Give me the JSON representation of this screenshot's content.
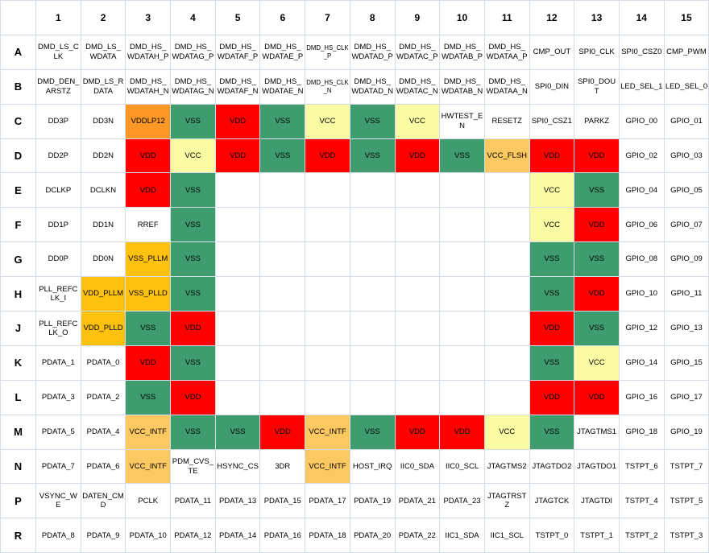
{
  "colors": {
    "red": "#fe0000",
    "green": "#3e9c6f",
    "yellow": "#fbfba3",
    "orange": "#fd9827",
    "amber": "#fec10d",
    "lightamber": "#fbc862",
    "grid_line": "#d5dbe7",
    "text": "#000000"
  },
  "grid": {
    "corner_label": "",
    "col_headers": [
      "1",
      "2",
      "3",
      "4",
      "5",
      "6",
      "7",
      "8",
      "9",
      "10",
      "11",
      "12",
      "13",
      "14",
      "15"
    ],
    "rows": [
      {
        "label": "A",
        "cells": [
          {
            "t": "DMD_LS_CLK"
          },
          {
            "t": "DMD_LS_WDATA"
          },
          {
            "t": "DMD_HS_WDATAH_P"
          },
          {
            "t": "DMD_HS_WDATAG_P"
          },
          {
            "t": "DMD_HS_WDATAF_P"
          },
          {
            "t": "DMD_HS_WDATAE_P"
          },
          {
            "t": "DMD_HS_CLK_P",
            "small": true
          },
          {
            "t": "DMD_HS_WDATAD_P"
          },
          {
            "t": "DMD_HS_WDATAC_P"
          },
          {
            "t": "DMD_HS_WDATAB_P"
          },
          {
            "t": "DMD_HS_WDATAA_P"
          },
          {
            "t": "CMP_OUT"
          },
          {
            "t": "SPI0_CLK"
          },
          {
            "t": "SPI0_CSZ0"
          },
          {
            "t": "CMP_PWM"
          }
        ]
      },
      {
        "label": "B",
        "cells": [
          {
            "t": "DMD_DEN_ARSTZ"
          },
          {
            "t": "DMD_LS_RDATA"
          },
          {
            "t": "DMD_HS_WDATAH_N"
          },
          {
            "t": "DMD_HS_WDATAG_N"
          },
          {
            "t": "DMD_HS_WDATAF_N"
          },
          {
            "t": "DMD_HS_WDATAE_N"
          },
          {
            "t": "DMD_HS_CLK_N",
            "small": true
          },
          {
            "t": "DMD_HS_WDATAD_N"
          },
          {
            "t": "DMD_HS_WDATAC_N"
          },
          {
            "t": "DMD_HS_WDATAB_N"
          },
          {
            "t": "DMD_HS_WDATAA_N"
          },
          {
            "t": "SPI0_DIN"
          },
          {
            "t": "SPI0_DOUT"
          },
          {
            "t": "LED_SEL_1"
          },
          {
            "t": "LED_SEL_0"
          }
        ]
      },
      {
        "label": "C",
        "cells": [
          {
            "t": "DD3P"
          },
          {
            "t": "DD3N"
          },
          {
            "t": "VDDLP12",
            "c": "orange"
          },
          {
            "t": "VSS",
            "c": "green"
          },
          {
            "t": "VDD",
            "c": "red"
          },
          {
            "t": "VSS",
            "c": "green"
          },
          {
            "t": "VCC",
            "c": "yellow"
          },
          {
            "t": "VSS",
            "c": "green"
          },
          {
            "t": "VCC",
            "c": "yellow"
          },
          {
            "t": "HWTEST_EN"
          },
          {
            "t": "RESETZ"
          },
          {
            "t": "SPI0_CSZ1"
          },
          {
            "t": "PARKZ"
          },
          {
            "t": "GPIO_00"
          },
          {
            "t": "GPIO_01"
          }
        ]
      },
      {
        "label": "D",
        "cells": [
          {
            "t": "DD2P"
          },
          {
            "t": "DD2N"
          },
          {
            "t": "VDD",
            "c": "red"
          },
          {
            "t": "VCC",
            "c": "yellow"
          },
          {
            "t": "VDD",
            "c": "red"
          },
          {
            "t": "VSS",
            "c": "green"
          },
          {
            "t": "VDD",
            "c": "red"
          },
          {
            "t": "VSS",
            "c": "green"
          },
          {
            "t": "VDD",
            "c": "red"
          },
          {
            "t": "VSS",
            "c": "green"
          },
          {
            "t": "VCC_FLSH",
            "c": "lightamber"
          },
          {
            "t": "VDD",
            "c": "red"
          },
          {
            "t": "VDD",
            "c": "red"
          },
          {
            "t": "GPIO_02"
          },
          {
            "t": "GPIO_03"
          }
        ]
      },
      {
        "label": "E",
        "cells": [
          {
            "t": "DCLKP"
          },
          {
            "t": "DCLKN"
          },
          {
            "t": "VDD",
            "c": "red"
          },
          {
            "t": "VSS",
            "c": "green"
          },
          {
            "t": ""
          },
          {
            "t": ""
          },
          {
            "t": ""
          },
          {
            "t": ""
          },
          {
            "t": ""
          },
          {
            "t": ""
          },
          {
            "t": ""
          },
          {
            "t": "VCC",
            "c": "yellow"
          },
          {
            "t": "VSS",
            "c": "green"
          },
          {
            "t": "GPIO_04"
          },
          {
            "t": "GPIO_05"
          }
        ]
      },
      {
        "label": "F",
        "cells": [
          {
            "t": "DD1P"
          },
          {
            "t": "DD1N"
          },
          {
            "t": "RREF"
          },
          {
            "t": "VSS",
            "c": "green"
          },
          {
            "t": ""
          },
          {
            "t": ""
          },
          {
            "t": ""
          },
          {
            "t": ""
          },
          {
            "t": ""
          },
          {
            "t": ""
          },
          {
            "t": ""
          },
          {
            "t": "VCC",
            "c": "yellow"
          },
          {
            "t": "VDD",
            "c": "red"
          },
          {
            "t": "GPIO_06"
          },
          {
            "t": "GPIO_07"
          }
        ]
      },
      {
        "label": "G",
        "cells": [
          {
            "t": "DD0P"
          },
          {
            "t": "DD0N"
          },
          {
            "t": "VSS_PLLM",
            "c": "amber"
          },
          {
            "t": "VSS",
            "c": "green"
          },
          {
            "t": ""
          },
          {
            "t": ""
          },
          {
            "t": ""
          },
          {
            "t": ""
          },
          {
            "t": ""
          },
          {
            "t": ""
          },
          {
            "t": ""
          },
          {
            "t": "VSS",
            "c": "green"
          },
          {
            "t": "VSS",
            "c": "green"
          },
          {
            "t": "GPIO_08"
          },
          {
            "t": "GPIO_09"
          }
        ]
      },
      {
        "label": "H",
        "cells": [
          {
            "t": "PLL_REFCLK_I"
          },
          {
            "t": "VDD_PLLM",
            "c": "amber"
          },
          {
            "t": "VSS_PLLD",
            "c": "amber"
          },
          {
            "t": "VSS",
            "c": "green"
          },
          {
            "t": ""
          },
          {
            "t": ""
          },
          {
            "t": ""
          },
          {
            "t": ""
          },
          {
            "t": ""
          },
          {
            "t": ""
          },
          {
            "t": ""
          },
          {
            "t": "VSS",
            "c": "green"
          },
          {
            "t": "VDD",
            "c": "red"
          },
          {
            "t": "GPIO_10"
          },
          {
            "t": "GPIO_11"
          }
        ]
      },
      {
        "label": "J",
        "cells": [
          {
            "t": "PLL_REFCLK_O"
          },
          {
            "t": "VDD_PLLD",
            "c": "amber"
          },
          {
            "t": "VSS",
            "c": "green"
          },
          {
            "t": "VDD",
            "c": "red"
          },
          {
            "t": ""
          },
          {
            "t": ""
          },
          {
            "t": ""
          },
          {
            "t": ""
          },
          {
            "t": ""
          },
          {
            "t": ""
          },
          {
            "t": ""
          },
          {
            "t": "VDD",
            "c": "red"
          },
          {
            "t": "VSS",
            "c": "green"
          },
          {
            "t": "GPIO_12"
          },
          {
            "t": "GPIO_13"
          }
        ]
      },
      {
        "label": "K",
        "cells": [
          {
            "t": "PDATA_1"
          },
          {
            "t": "PDATA_0"
          },
          {
            "t": "VDD",
            "c": "red"
          },
          {
            "t": "VSS",
            "c": "green"
          },
          {
            "t": ""
          },
          {
            "t": ""
          },
          {
            "t": ""
          },
          {
            "t": ""
          },
          {
            "t": ""
          },
          {
            "t": ""
          },
          {
            "t": ""
          },
          {
            "t": "VSS",
            "c": "green"
          },
          {
            "t": "VCC",
            "c": "yellow"
          },
          {
            "t": "GPIO_14"
          },
          {
            "t": "GPIO_15"
          }
        ]
      },
      {
        "label": "L",
        "cells": [
          {
            "t": "PDATA_3"
          },
          {
            "t": "PDATA_2"
          },
          {
            "t": "VSS",
            "c": "green"
          },
          {
            "t": "VDD",
            "c": "red"
          },
          {
            "t": ""
          },
          {
            "t": ""
          },
          {
            "t": ""
          },
          {
            "t": ""
          },
          {
            "t": ""
          },
          {
            "t": ""
          },
          {
            "t": ""
          },
          {
            "t": "VDD",
            "c": "red"
          },
          {
            "t": "VDD",
            "c": "red"
          },
          {
            "t": "GPIO_16"
          },
          {
            "t": "GPIO_17"
          }
        ]
      },
      {
        "label": "M",
        "cells": [
          {
            "t": "PDATA_5"
          },
          {
            "t": "PDATA_4"
          },
          {
            "t": "VCC_INTF",
            "c": "lightamber"
          },
          {
            "t": "VSS",
            "c": "green"
          },
          {
            "t": "VSS",
            "c": "green"
          },
          {
            "t": "VDD",
            "c": "red"
          },
          {
            "t": "VCC_INTF",
            "c": "lightamber"
          },
          {
            "t": "VSS",
            "c": "green"
          },
          {
            "t": "VDD",
            "c": "red"
          },
          {
            "t": "VDD",
            "c": "red"
          },
          {
            "t": "VCC",
            "c": "yellow"
          },
          {
            "t": "VSS",
            "c": "green"
          },
          {
            "t": "JTAGTMS1"
          },
          {
            "t": "GPIO_18"
          },
          {
            "t": "GPIO_19"
          }
        ]
      },
      {
        "label": "N",
        "cells": [
          {
            "t": "PDATA_7"
          },
          {
            "t": "PDATA_6"
          },
          {
            "t": "VCC_INTF",
            "c": "lightamber"
          },
          {
            "t": "PDM_CVS_TE"
          },
          {
            "t": "HSYNC_CS"
          },
          {
            "t": "3DR"
          },
          {
            "t": "VCC_INTF",
            "c": "lightamber"
          },
          {
            "t": "HOST_IRQ"
          },
          {
            "t": "IIC0_SDA"
          },
          {
            "t": "IIC0_SCL"
          },
          {
            "t": "JTAGTMS2"
          },
          {
            "t": "JTAGTDO2"
          },
          {
            "t": "JTAGTDO1"
          },
          {
            "t": "TSTPT_6"
          },
          {
            "t": "TSTPT_7"
          }
        ]
      },
      {
        "label": "P",
        "cells": [
          {
            "t": "VSYNC_WE"
          },
          {
            "t": "DATEN_CMD"
          },
          {
            "t": "PCLK"
          },
          {
            "t": "PDATA_11"
          },
          {
            "t": "PDATA_13"
          },
          {
            "t": "PDATA_15"
          },
          {
            "t": "PDATA_17"
          },
          {
            "t": "PDATA_19"
          },
          {
            "t": "PDATA_21"
          },
          {
            "t": "PDATA_23"
          },
          {
            "t": "JTAGTRSTZ"
          },
          {
            "t": "JTAGTCK"
          },
          {
            "t": "JTAGTDI"
          },
          {
            "t": "TSTPT_4"
          },
          {
            "t": "TSTPT_5"
          }
        ]
      },
      {
        "label": "R",
        "cells": [
          {
            "t": "PDATA_8"
          },
          {
            "t": "PDATA_9"
          },
          {
            "t": "PDATA_10"
          },
          {
            "t": "PDATA_12"
          },
          {
            "t": "PDATA_14"
          },
          {
            "t": "PDATA_16"
          },
          {
            "t": "PDATA_18"
          },
          {
            "t": "PDATA_20"
          },
          {
            "t": "PDATA_22"
          },
          {
            "t": "IIC1_SDA"
          },
          {
            "t": "IIC1_SCL"
          },
          {
            "t": "TSTPT_0"
          },
          {
            "t": "TSTPT_1"
          },
          {
            "t": "TSTPT_2"
          },
          {
            "t": "TSTPT_3"
          }
        ]
      }
    ]
  }
}
